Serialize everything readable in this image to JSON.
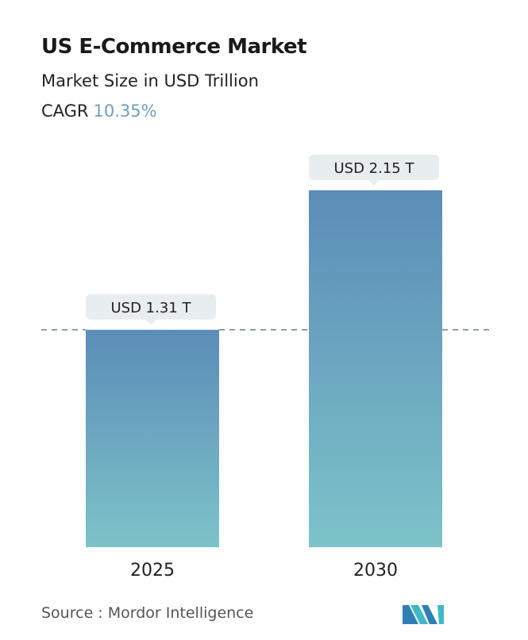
{
  "header": {
    "title": "US E-Commerce Market",
    "subtitle": "Market Size in USD Trillion",
    "cagr_label": "CAGR",
    "cagr_value": "10.35%"
  },
  "chart_data": {
    "type": "bar",
    "title": "US E-Commerce Market",
    "ylabel": "Market Size in USD Trillion",
    "categories": [
      "2025",
      "2030"
    ],
    "values": [
      1.31,
      2.15
    ],
    "data_labels": [
      "USD 1.31 T",
      "USD 2.15 T"
    ],
    "ylim": [
      0,
      2.15
    ],
    "grid": false,
    "reference_line": {
      "value": 1.31,
      "style": "dashed"
    },
    "colors": {
      "bar_top": "#5b8db8",
      "bar_bottom": "#7dc3c9",
      "line": "#4d7d8f",
      "label_bg": "#e8edf0"
    }
  },
  "footer": {
    "source": "Source :  Mordor Intelligence"
  }
}
